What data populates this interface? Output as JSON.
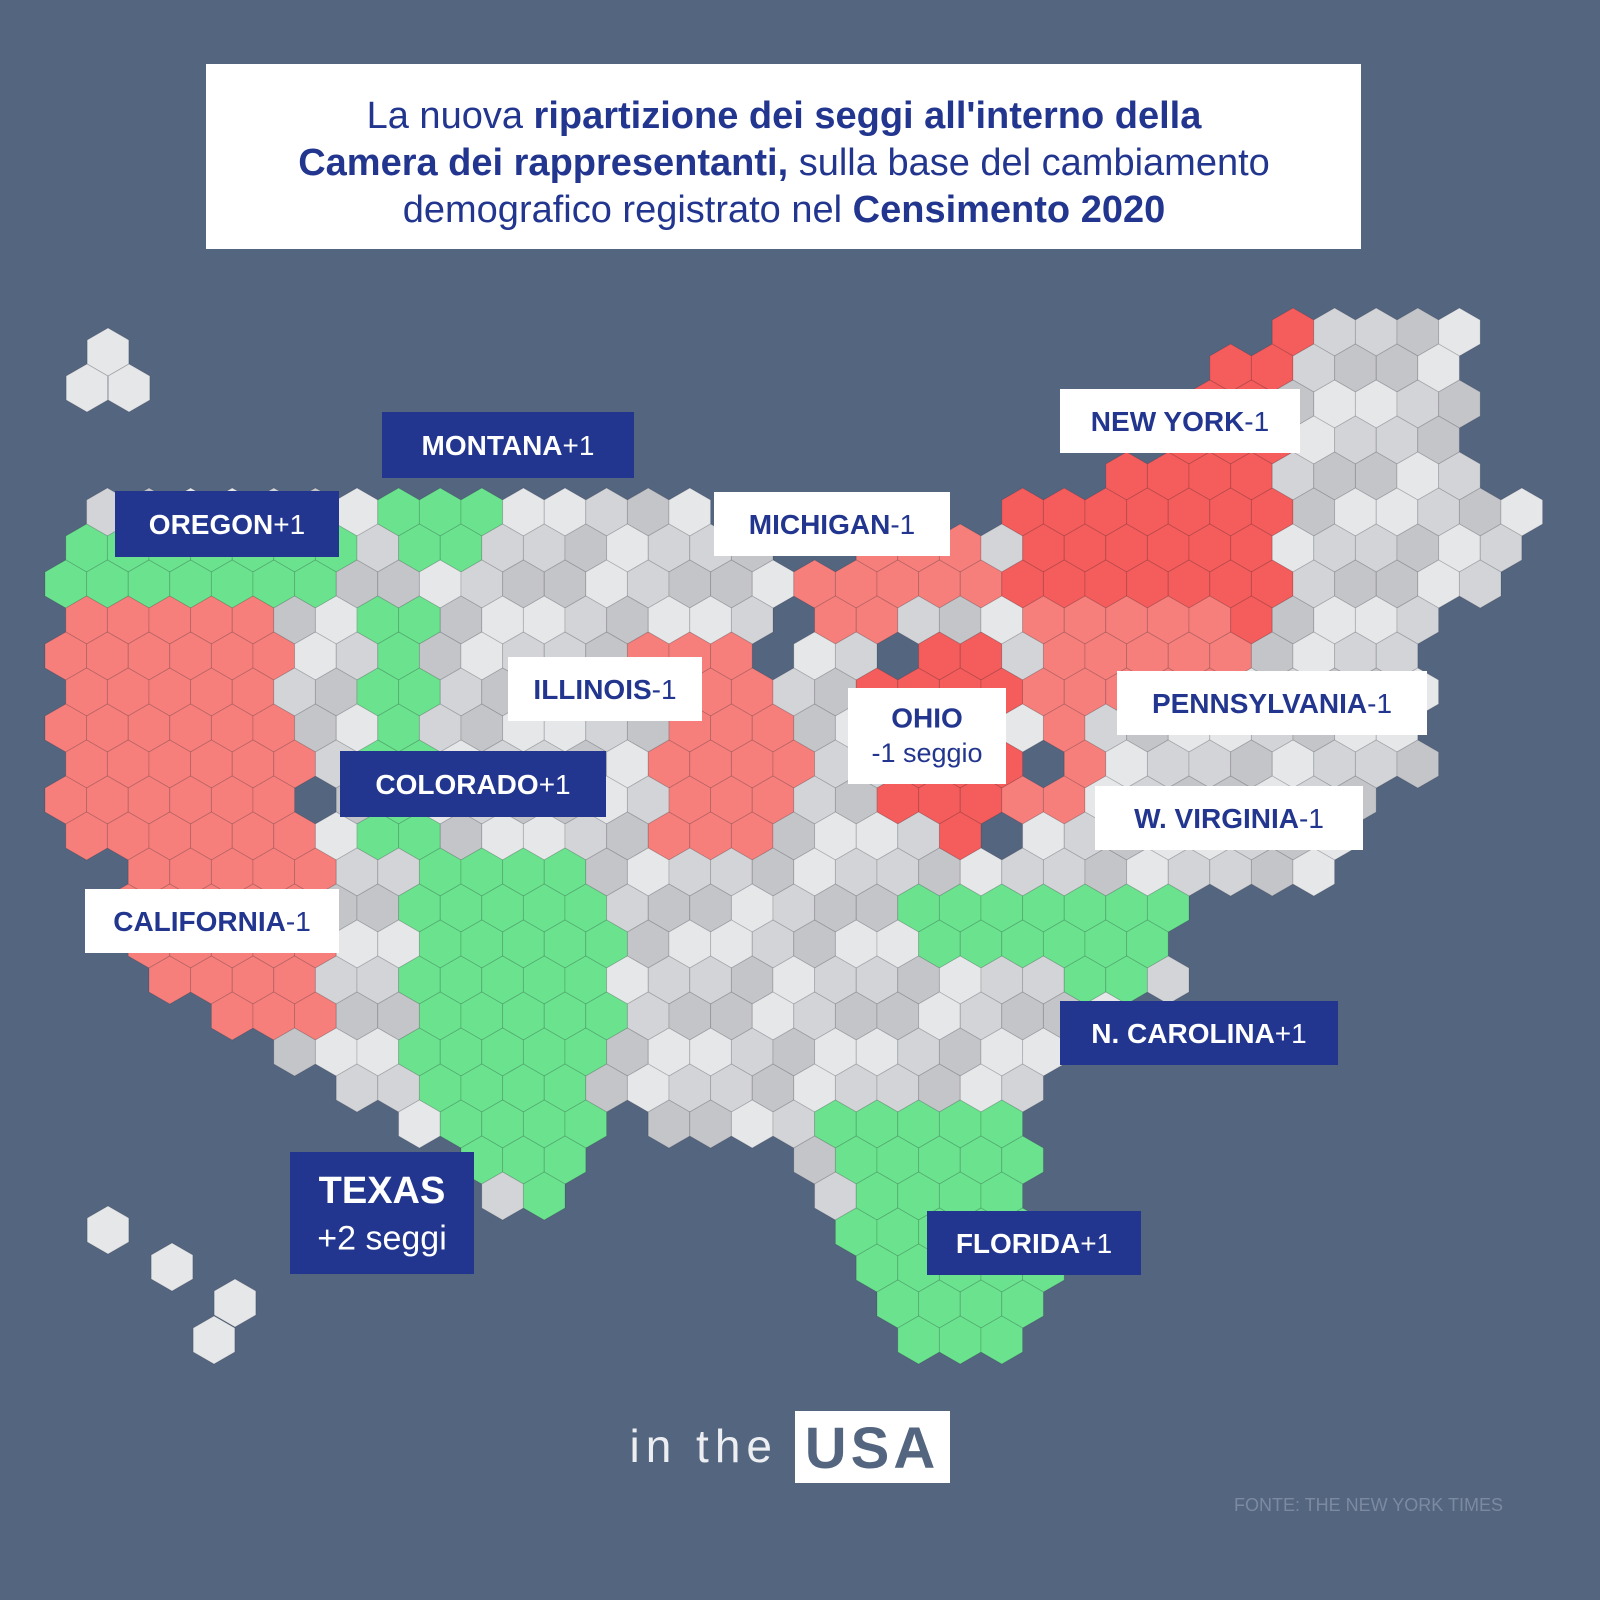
{
  "header": {
    "title_lines": [
      [
        {
          "text": "La nuova ",
          "bold": false
        },
        {
          "text": "ripartizione dei seggi all'interno della",
          "bold": true
        }
      ],
      [
        {
          "text": "Camera dei rappresentanti,",
          "bold": true
        },
        {
          "text": " sulla base del cambiamento",
          "bold": false
        }
      ],
      [
        {
          "text": "demografico registrato nel ",
          "bold": false
        },
        {
          "text": "Censimento 2020",
          "bold": true
        }
      ]
    ]
  },
  "labels": [
    {
      "name": "MONTANA",
      "change": "+1",
      "style": "dark"
    },
    {
      "name": "OREGON",
      "change": "+1",
      "style": "dark"
    },
    {
      "name": "NEW YORK",
      "change": "-1",
      "style": "light"
    },
    {
      "name": "MICHIGAN",
      "change": "-1",
      "style": "light"
    },
    {
      "name": "ILLINOIS",
      "change": "-1",
      "style": "light"
    },
    {
      "name": "PENNSYLVANIA",
      "change": "-1",
      "style": "light"
    },
    {
      "name": "OHIO",
      "change": "-1 seggio",
      "style": "light"
    },
    {
      "name": "COLORADO",
      "change": "+1",
      "style": "dark"
    },
    {
      "name": "W. VIRGINIA",
      "change": "-1",
      "style": "light"
    },
    {
      "name": "CALIFORNIA",
      "change": "-1",
      "style": "light"
    },
    {
      "name": "N. CAROLINA",
      "change": "+1",
      "style": "dark"
    },
    {
      "name": "TEXAS",
      "change": "+2 seggi",
      "style": "dark"
    },
    {
      "name": "FLORIDA",
      "change": "+1",
      "style": "dark"
    }
  ],
  "footer": {
    "brand_prefix": "in the",
    "brand_box": "USA",
    "source": "FONTE: THE NEW YORK TIMES"
  }
}
